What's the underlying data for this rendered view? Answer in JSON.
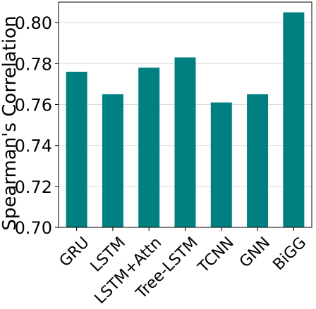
{
  "chart_data": {
    "type": "bar",
    "title": "",
    "xlabel": "",
    "ylabel": "Spearman's Correlation",
    "categories": [
      "GRU",
      "LSTM",
      "LSTM+Attn",
      "Tree-LSTM",
      "TCNN",
      "GNN",
      "BiGG"
    ],
    "values": [
      0.776,
      0.765,
      0.778,
      0.783,
      0.761,
      0.765,
      0.805
    ],
    "ylim": [
      0.7,
      0.81
    ],
    "yticks": [
      0.7,
      0.72,
      0.74,
      0.76,
      0.78,
      0.8
    ],
    "ytick_labels": [
      "0.70",
      "0.72",
      "0.74",
      "0.76",
      "0.78",
      "0.80"
    ],
    "grid": "horizontal",
    "legend": "none",
    "colors": {
      "bar": "#008080",
      "grid": "#dcdcdc",
      "axis": "#000000"
    }
  }
}
